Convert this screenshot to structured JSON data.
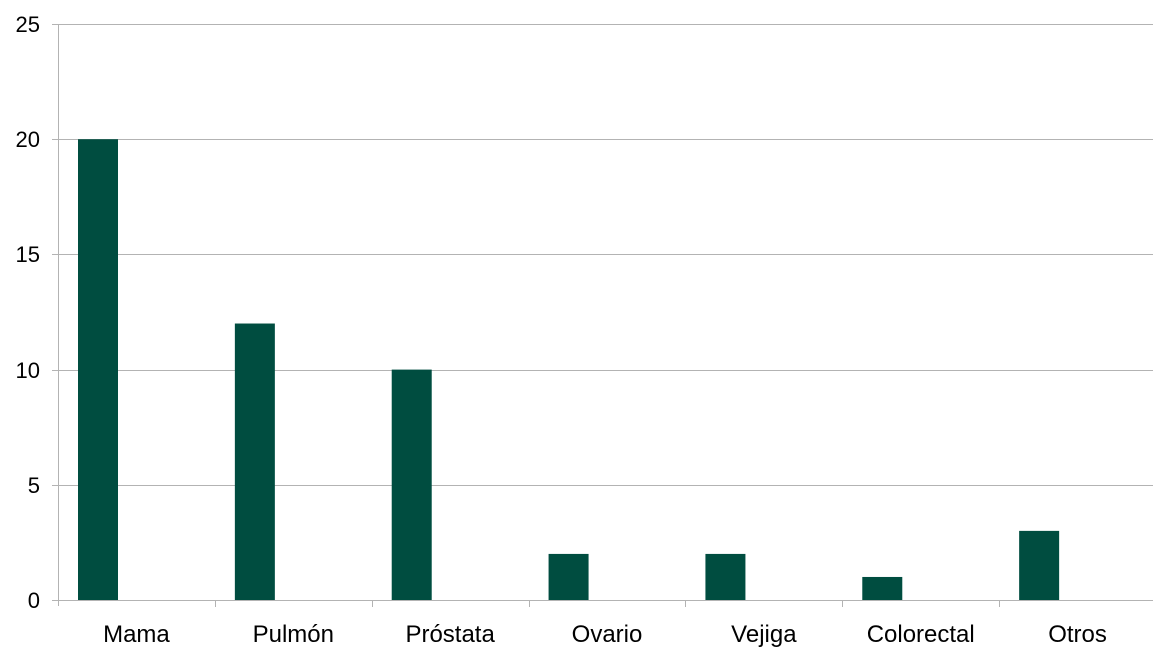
{
  "chart_data": {
    "type": "bar",
    "categories": [
      "Mama",
      "Pulmón",
      "Próstata",
      "Ovario",
      "Vejiga",
      "Colorectal",
      "Otros"
    ],
    "series": [
      {
        "values": [
          20,
          12,
          10,
          2,
          2,
          1,
          3
        ]
      }
    ],
    "ylim": [
      0,
      25
    ],
    "yticks": [
      0,
      5,
      10,
      15,
      20,
      25
    ],
    "grid": true,
    "legend": "none",
    "colors": {
      "bar": "#004d40",
      "grid": "#b3b3b3"
    }
  }
}
